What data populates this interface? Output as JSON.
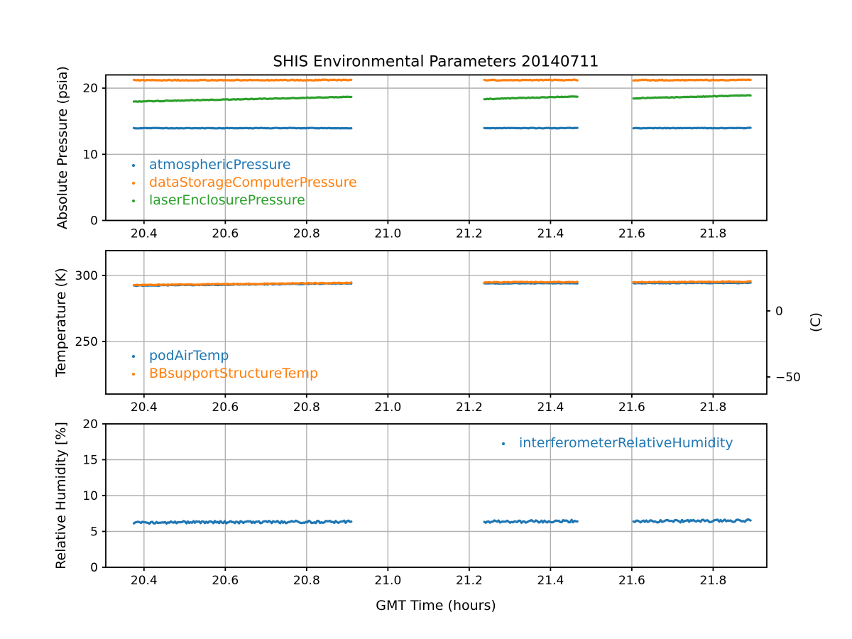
{
  "figure": {
    "title": "SHIS Environmental Parameters 20140711",
    "xlabel": "GMT Time (hours)",
    "background": "#ffffff",
    "grid_color": "#b0b0b0",
    "spine_color": "#000000",
    "text_color": "#000000"
  },
  "chart_data": [
    {
      "type": "scatter",
      "ylabel": "Absolute Pressure (psia)",
      "xlim": [
        20.306,
        21.932
      ],
      "ylim": [
        0,
        22.0
      ],
      "grid": true,
      "legend_position": "lower-left",
      "xtick_values": [
        20.4,
        20.6,
        20.8,
        21.0,
        21.2,
        21.4,
        21.6,
        21.8
      ],
      "xtick_labels": [
        "20.4",
        "20.6",
        "20.8",
        "21.0",
        "21.2",
        "21.4",
        "21.6",
        "21.8"
      ],
      "ytick_values": [
        0,
        10,
        20
      ],
      "ytick_labels": [
        "0",
        "10",
        "20"
      ],
      "segments": [
        [
          20.375,
          20.91
        ],
        [
          21.237,
          21.466
        ],
        [
          21.604,
          21.892
        ]
      ],
      "series": [
        {
          "name": "atmosphericPressure",
          "color": "#1f77b4",
          "values_by_segment": [
            [
              13.95,
              13.95
            ],
            [
              13.95,
              13.96
            ],
            [
              13.95,
              13.97
            ]
          ],
          "noise": 0.04
        },
        {
          "name": "dataStorageComputerPressure",
          "color": "#ff7f0e",
          "values_by_segment": [
            [
              21.2,
              21.22
            ],
            [
              21.2,
              21.23
            ],
            [
              21.2,
              21.24
            ]
          ],
          "noise": 0.07
        },
        {
          "name": "laserEnclosurePressure",
          "color": "#2ca02c",
          "values_by_segment": [
            [
              17.98,
              18.68
            ],
            [
              18.35,
              18.75
            ],
            [
              18.47,
              18.9
            ]
          ],
          "noise": 0.05
        }
      ]
    },
    {
      "type": "scatter",
      "ylabel": "Temperature (K)",
      "xlim": [
        20.306,
        21.932
      ],
      "ylim": [
        210.2,
        318.8
      ],
      "grid": true,
      "legend_position": "lower-left",
      "xtick_values": [
        20.4,
        20.6,
        20.8,
        21.0,
        21.2,
        21.4,
        21.6,
        21.8
      ],
      "xtick_labels": [
        "20.4",
        "20.6",
        "20.8",
        "21.0",
        "21.2",
        "21.4",
        "21.6",
        "21.8"
      ],
      "ytick_values": [
        250,
        300
      ],
      "ytick_labels": [
        "250",
        "300"
      ],
      "right_axis": {
        "label": "(C)",
        "tick_values_c": [
          0,
          -50
        ],
        "tick_labels": [
          "0",
          "−50"
        ],
        "kelvin_offset": 273.15
      },
      "segments": [
        [
          20.375,
          20.91
        ],
        [
          21.237,
          21.466
        ],
        [
          21.604,
          21.892
        ]
      ],
      "series": [
        {
          "name": "podAirTemp",
          "color": "#1f77b4",
          "values_by_segment": [
            [
              292.3,
              294.0
            ],
            [
              294.0,
              294.2
            ],
            [
              294.1,
              294.4
            ]
          ],
          "noise": 0.25
        },
        {
          "name": "BBsupportStructureTemp",
          "color": "#ff7f0e",
          "values_by_segment": [
            [
              292.7,
              294.4
            ],
            [
              294.8,
              295.0
            ],
            [
              294.9,
              295.3
            ]
          ],
          "noise": 0.3
        }
      ]
    },
    {
      "type": "scatter",
      "ylabel": "Relative Humidity [%]",
      "xlim": [
        20.306,
        21.932
      ],
      "ylim": [
        0,
        20
      ],
      "grid": true,
      "legend_position": "upper-right",
      "xtick_values": [
        20.4,
        20.6,
        20.8,
        21.0,
        21.2,
        21.4,
        21.6,
        21.8
      ],
      "xtick_labels": [
        "20.4",
        "20.6",
        "20.8",
        "21.0",
        "21.2",
        "21.4",
        "21.6",
        "21.8"
      ],
      "ytick_values": [
        0,
        5,
        10,
        15,
        20
      ],
      "ytick_labels": [
        "0",
        "5",
        "10",
        "15",
        "20"
      ],
      "segments": [
        [
          20.375,
          20.91
        ],
        [
          21.237,
          21.466
        ],
        [
          21.604,
          21.892
        ]
      ],
      "series": [
        {
          "name": "interferometerRelativeHumidity",
          "color": "#1f77b4",
          "values_by_segment": [
            [
              6.25,
              6.35
            ],
            [
              6.35,
              6.45
            ],
            [
              6.4,
              6.5
            ]
          ],
          "noise": 0.18
        }
      ]
    }
  ]
}
